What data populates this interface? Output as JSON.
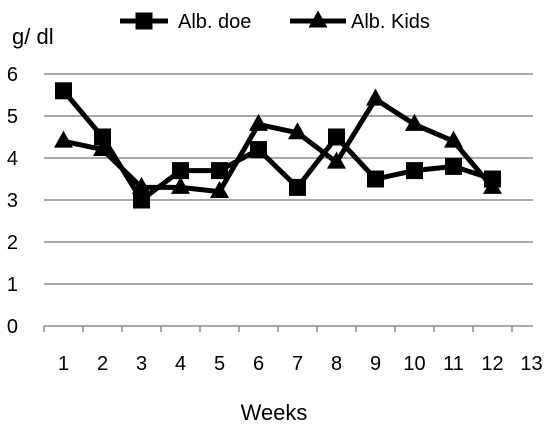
{
  "chart_data": {
    "type": "line",
    "ylabel": "g/ dl",
    "xlabel": "Weeks",
    "x": [
      1,
      2,
      3,
      4,
      5,
      6,
      7,
      8,
      9,
      10,
      11,
      12
    ],
    "x_ticks": [
      "1",
      "2",
      "3",
      "4",
      "5",
      "6",
      "7",
      "8",
      "9",
      "10",
      "11",
      "12",
      "13"
    ],
    "y_ticks": [
      "0",
      "1",
      "2",
      "3",
      "4",
      "5",
      "6"
    ],
    "ylim": [
      0,
      6
    ],
    "grid": "horizontal",
    "legend_position": "top",
    "series": [
      {
        "name": "Alb. doe",
        "marker": "square",
        "color": "#000000",
        "values": [
          5.6,
          4.5,
          3.0,
          3.7,
          3.7,
          4.2,
          3.3,
          4.5,
          3.5,
          3.7,
          3.8,
          3.5
        ]
      },
      {
        "name": "Alb. Kids",
        "marker": "triangle",
        "color": "#000000",
        "values": [
          4.4,
          4.2,
          3.3,
          3.3,
          3.2,
          4.8,
          4.6,
          3.9,
          5.4,
          4.8,
          4.4,
          3.3
        ]
      }
    ]
  }
}
